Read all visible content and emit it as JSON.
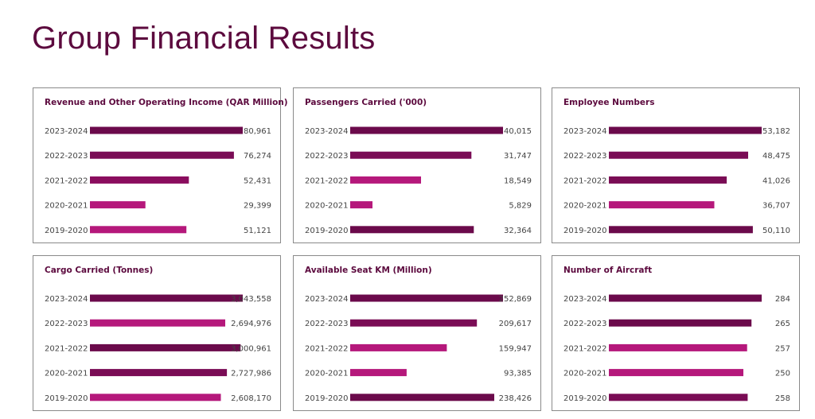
{
  "page": {
    "title": "Group Financial Results"
  },
  "colors": {
    "dark": "#6b0a4b",
    "medium": "#8a0d5e",
    "light": "#b5187b",
    "title": "#5c0a3e"
  },
  "chart_data": [
    {
      "type": "bar",
      "title": "Revenue and Other Operating Income (QAR Million)",
      "categories": [
        "2023-2024",
        "2022-2023",
        "2021-2022",
        "2020-2021",
        "2019-2020"
      ],
      "values": [
        80961,
        76274,
        52431,
        29399,
        51121
      ],
      "value_labels": [
        "80,961",
        "76,274",
        "52,431",
        "29,399",
        "51,121"
      ],
      "bar_colors": [
        "#6b0a4b",
        "#7a0c55",
        "#8a0d5e",
        "#b5187b",
        "#b5187b"
      ]
    },
    {
      "type": "bar",
      "title": "Passengers Carried ('000)",
      "categories": [
        "2023-2024",
        "2022-2023",
        "2021-2022",
        "2020-2021",
        "2019-2020"
      ],
      "values": [
        40015,
        31747,
        18549,
        5829,
        32364
      ],
      "value_labels": [
        "40,015",
        "31,747",
        "18,549",
        "5,829",
        "32,364"
      ],
      "bar_colors": [
        "#6b0a4b",
        "#7a0c55",
        "#b5187b",
        "#b5187b",
        "#6b0a4b"
      ]
    },
    {
      "type": "bar",
      "title": "Employee Numbers",
      "categories": [
        "2023-2024",
        "2022-2023",
        "2021-2022",
        "2020-2021",
        "2019-2020"
      ],
      "values": [
        53182,
        48475,
        41026,
        36707,
        50110
      ],
      "value_labels": [
        "53,182",
        "48,475",
        "41,026",
        "36,707",
        "50,110"
      ],
      "bar_colors": [
        "#6b0a4b",
        "#7a0c55",
        "#7a0c55",
        "#b5187b",
        "#6b0a4b"
      ]
    },
    {
      "type": "bar",
      "title": "Cargo Carried (Tonnes)",
      "categories": [
        "2023-2024",
        "2022-2023",
        "2021-2022",
        "2020-2021",
        "2019-2020"
      ],
      "values": [
        3043558,
        2694976,
        3000961,
        2727986,
        2608170
      ],
      "value_labels": [
        "3,043,558",
        "2,694,976",
        "3,000,961",
        "2,727,986",
        "2,608,170"
      ],
      "bar_colors": [
        "#6b0a4b",
        "#b5187b",
        "#6b0a4b",
        "#7a0c55",
        "#b5187b"
      ]
    },
    {
      "type": "bar",
      "title": "Available Seat KM (Million)",
      "categories": [
        "2023-2024",
        "2022-2023",
        "2021-2022",
        "2020-2021",
        "2019-2020"
      ],
      "values": [
        252869,
        209617,
        159947,
        93385,
        238426
      ],
      "value_labels": [
        "252,869",
        "209,617",
        "159,947",
        "93,385",
        "238,426"
      ],
      "bar_colors": [
        "#6b0a4b",
        "#7a0c55",
        "#b5187b",
        "#b5187b",
        "#6b0a4b"
      ]
    },
    {
      "type": "bar",
      "title": "Number of Aircraft",
      "categories": [
        "2023-2024",
        "2022-2023",
        "2021-2022",
        "2020-2021",
        "2019-2020"
      ],
      "values": [
        284,
        265,
        257,
        250,
        258
      ],
      "value_labels": [
        "284",
        "265",
        "257",
        "250",
        "258"
      ],
      "bar_colors": [
        "#6b0a4b",
        "#6b0a4b",
        "#b5187b",
        "#b5187b",
        "#7a0c55"
      ]
    }
  ]
}
